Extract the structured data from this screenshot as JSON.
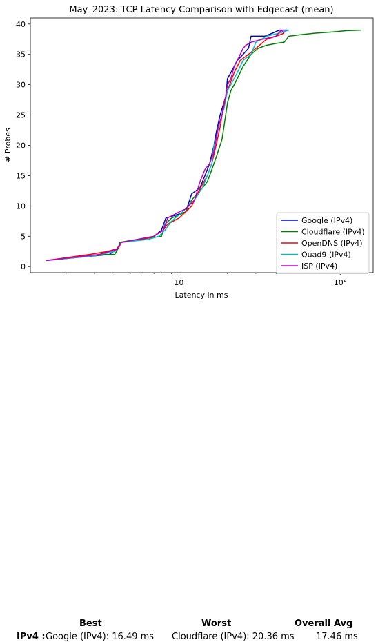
{
  "chart_data": {
    "type": "line",
    "title": "May_2023: TCP Latency Comparison with Edgecast (mean)",
    "xlabel": "Latency in ms",
    "ylabel": "# Probes",
    "xscale": "log",
    "xlim": [
      1.2,
      160
    ],
    "ylim": [
      -1,
      41
    ],
    "xticks": [
      10,
      100
    ],
    "xtick_labels": [
      "10",
      "10²"
    ],
    "yticks": [
      0,
      5,
      10,
      15,
      20,
      25,
      30,
      35,
      40
    ],
    "grid": false,
    "legend_position": "lower-right",
    "series": [
      {
        "name": "Google (IPv4)",
        "color": "#0000bf",
        "x": [
          1.5,
          3.7,
          4.2,
          4.4,
          7.0,
          7.8,
          8.3,
          11.0,
          12.0,
          13.5,
          14.5,
          15.5,
          16.5,
          17.0,
          18.0,
          19.5,
          20.0,
          21.0,
          23.0,
          25.0,
          27.0,
          28.0,
          34.0,
          38.0,
          42.0,
          48.0
        ],
        "y": [
          1,
          2,
          3,
          4,
          5,
          6,
          8,
          9,
          12,
          13,
          15,
          17,
          20,
          22,
          25,
          28,
          31,
          32,
          34,
          35,
          36,
          38,
          38,
          38.5,
          39,
          39
        ]
      },
      {
        "name": "Cloudflare (IPv4)",
        "color": "#007f00",
        "x": [
          1.5,
          3.5,
          4.0,
          4.2,
          4.3,
          5.0,
          6.5,
          7.8,
          8.2,
          9.0,
          10.0,
          11.0,
          12.0,
          14.0,
          15.0,
          15.5,
          16.0,
          17.0,
          18.0,
          18.5,
          19.0,
          20.0,
          21.0,
          22.0,
          23.0,
          25.0,
          28.0,
          31.0,
          35.0,
          40.0,
          45.0,
          48.0,
          55.0,
          70.0,
          90.0,
          110.0,
          135.0
        ],
        "y": [
          1,
          2,
          2,
          3,
          4,
          4.3,
          4.7,
          5,
          7,
          8,
          8.5,
          9,
          11,
          13,
          14,
          15,
          16,
          18,
          20,
          21,
          23,
          27,
          29,
          30,
          31,
          33,
          35,
          36,
          36.5,
          36.8,
          37,
          38,
          38.2,
          38.5,
          38.7,
          38.9,
          39
        ]
      },
      {
        "name": "OpenDNS (IPv4)",
        "color": "#ff0000",
        "x": [
          1.5,
          2.8,
          3.6,
          4.2,
          4.4,
          6.0,
          7.0,
          8.0,
          8.5,
          10.0,
          11.0,
          12.0,
          13.0,
          15.0,
          16.0,
          17.0,
          18.0,
          18.5,
          19.0,
          20.0,
          22.0,
          24.0,
          27.0,
          30.0,
          35.0,
          40.0,
          45.0
        ],
        "y": [
          1,
          2,
          2.5,
          3,
          4,
          4.5,
          5,
          6,
          7,
          8,
          9,
          10,
          12,
          15,
          17,
          20,
          23,
          25,
          27,
          29,
          32,
          34,
          35,
          36,
          37.5,
          38,
          38.5
        ]
      },
      {
        "name": "Quad9 (IPv4)",
        "color": "#00bfbf",
        "x": [
          1.5,
          3.0,
          4.0,
          4.4,
          6.5,
          7.5,
          8.2,
          9.0,
          10.0,
          11.5,
          12.5,
          14.0,
          15.0,
          16.0,
          16.5,
          17.0,
          18.0,
          19.0,
          20.0,
          21.0,
          23.0,
          25.0,
          28.0,
          30.0,
          35.0,
          42.0,
          48.0
        ],
        "y": [
          1,
          1.8,
          2.5,
          4,
          4.5,
          5,
          6,
          7.5,
          8.5,
          10,
          11,
          13,
          15,
          17,
          20,
          21,
          24,
          26,
          29,
          30,
          32,
          34,
          35,
          37,
          38,
          38.5,
          39
        ]
      },
      {
        "name": "ISP (IPv4)",
        "color": "#bf00bf",
        "x": [
          1.5,
          3.2,
          4.1,
          4.4,
          7.0,
          8.0,
          8.5,
          10.0,
          11.0,
          12.5,
          13.5,
          14.5,
          15.5,
          16.5,
          17.0,
          17.5,
          18.5,
          19.5,
          20.0,
          21.0,
          22.0,
          24.0,
          25.0,
          26.0,
          28.0,
          33.0,
          40.0,
          43.0,
          45.0
        ],
        "y": [
          1,
          2,
          2.8,
          4,
          5,
          6,
          8,
          9,
          9.5,
          11,
          14,
          16,
          17,
          19,
          21,
          23,
          25,
          28,
          30,
          31,
          33,
          35,
          36,
          36.5,
          37,
          37.5,
          38,
          39,
          38.5
        ]
      }
    ]
  },
  "summary": {
    "headers": {
      "best": "Best",
      "worst": "Worst",
      "overall": "Overall Avg"
    },
    "row_label": "IPv4 :",
    "best": "Google (IPv4): 16.49 ms",
    "worst": "Cloudflare (IPv4): 20.36 ms",
    "overall": "17.46 ms"
  }
}
